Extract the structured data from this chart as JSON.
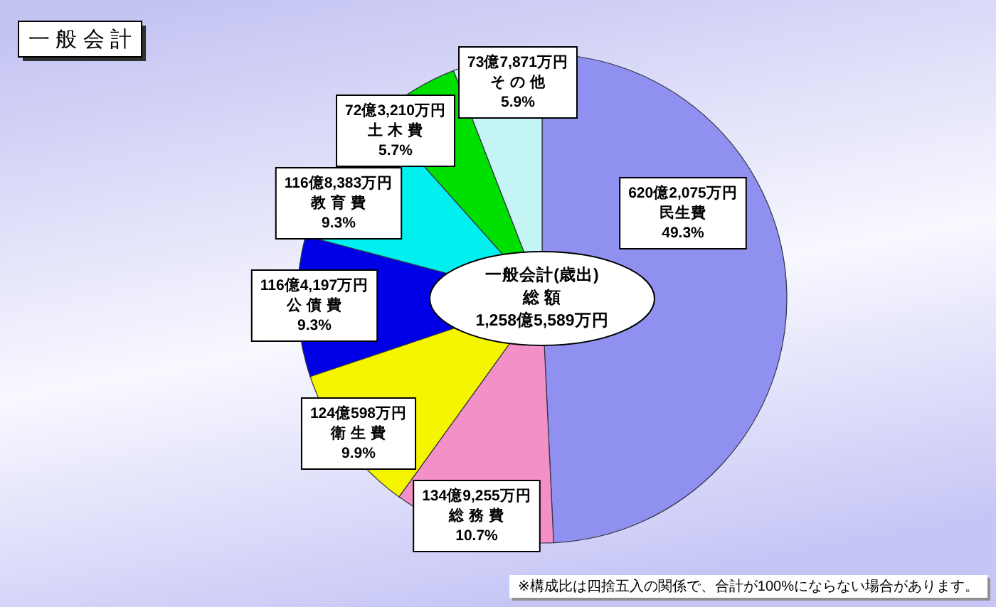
{
  "chart_data": {
    "type": "pie",
    "title": "一 般 会 計",
    "categories": [
      "民生費",
      "総 務 費",
      "衛 生 費",
      "公 債 費",
      "教 育 費",
      "土 木 費",
      "そ の 他"
    ],
    "values": [
      49.3,
      10.7,
      9.9,
      9.3,
      9.3,
      5.7,
      5.9
    ],
    "colors": [
      "#9090f0",
      "#f490c8",
      "#f5f500",
      "#0000e6",
      "#00f0f0",
      "#00e000",
      "#c4f4f4"
    ],
    "value_labels": [
      "49.3%",
      "10.7%",
      "9.9%",
      "9.3%",
      "9.3%",
      "5.7%",
      "5.9%"
    ],
    "annotations": [
      {
        "text": "620億2,075万円",
        "x": "民生費"
      },
      {
        "text": "134億9,255万円",
        "x": "総 務 費"
      },
      {
        "text": "124億598万円",
        "x": "衛 生 費"
      },
      {
        "text": "116億4,197万円",
        "x": "公 債 費"
      },
      {
        "text": "116億8,383万円",
        "x": "教 育 費"
      },
      {
        "text": "72億3,210万円",
        "x": "土 木 費"
      },
      {
        "text": "73億7,871万円",
        "x": "そ の 他"
      },
      "一般会計(歳出)\n総 額\n1,258億5,589万円",
      "※構成比は四捨五入の関係で、合計が100%にならない場合があります。"
    ]
  }
}
